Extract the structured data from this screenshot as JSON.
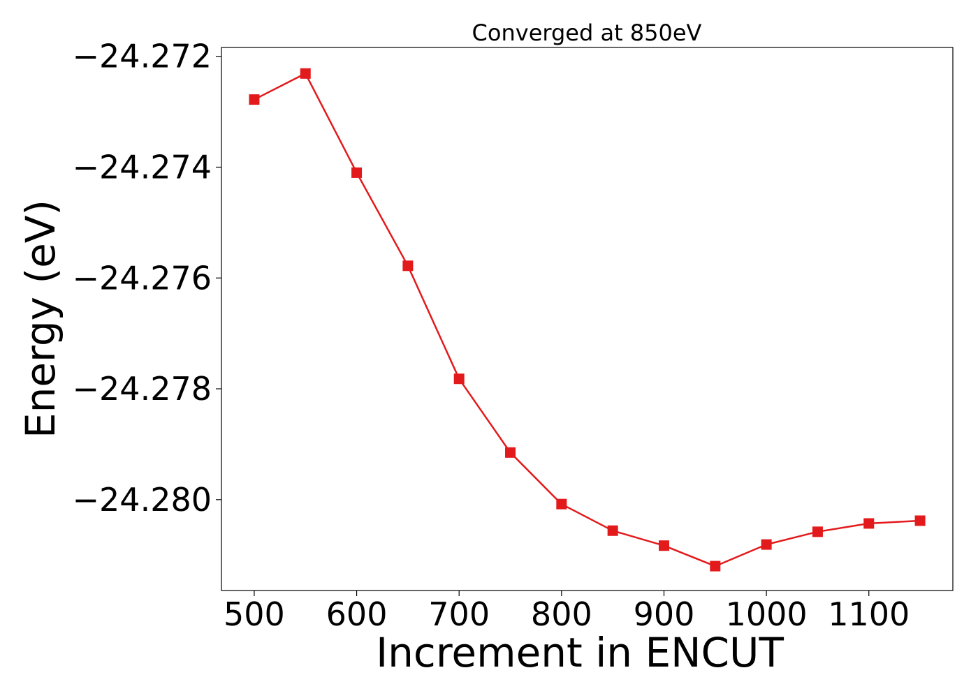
{
  "chart_data": {
    "type": "line",
    "title": "Converged at 850eV",
    "xlabel": "Increment in ENCUT",
    "ylabel": "Energy (eV)",
    "xlim": [
      468,
      1182
    ],
    "ylim": [
      -24.28164,
      -24.27184
    ],
    "xticks": [
      500,
      600,
      700,
      800,
      900,
      1000,
      1100
    ],
    "yticks": [
      -24.272,
      -24.274,
      -24.276,
      -24.278,
      -24.28
    ],
    "ytick_labels": [
      "−24.272",
      "−24.274",
      "−24.276",
      "−24.278",
      "−24.280"
    ],
    "grid": false,
    "series": [
      {
        "color": "#e31a1c",
        "marker": "square",
        "x": [
          500,
          550,
          600,
          650,
          700,
          750,
          800,
          850,
          900,
          950,
          1000,
          1050,
          1100,
          1150
        ],
        "y": [
          -24.27278,
          -24.27231,
          -24.2741,
          -24.27578,
          -24.27782,
          -24.27915,
          -24.28008,
          -24.28056,
          -24.28083,
          -24.2812,
          -24.28081,
          -24.28058,
          -24.28043,
          -24.28038
        ]
      }
    ]
  }
}
